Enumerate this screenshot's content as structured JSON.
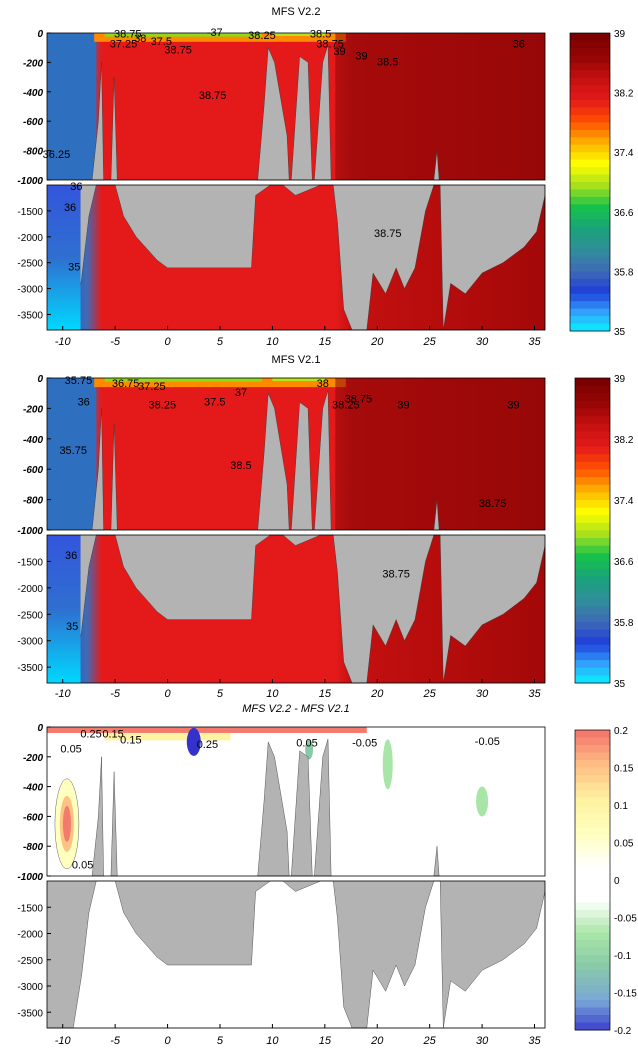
{
  "chart_data": [
    {
      "type": "heatmap",
      "title": "MFS V2.2",
      "x_ticks": [
        "-10",
        "-5",
        "0",
        "5",
        "10",
        "15",
        "20",
        "25",
        "30",
        "35"
      ],
      "y_ticks_upper": [
        "0",
        "-200",
        "-400",
        "-600",
        "-800",
        "-1000"
      ],
      "y_ticks_lower": [
        "-1500",
        "-2000",
        "-2500",
        "-3000",
        "-3500"
      ],
      "xlim": [
        -11.5,
        36
      ],
      "ylim_upper": [
        -1000,
        0
      ],
      "ylim_lower": [
        -3800,
        -1000
      ],
      "colorbar": {
        "min": 35,
        "max": 39,
        "ticks": [
          "39",
          "38.2",
          "37.4",
          "36.6",
          "35.8",
          "35"
        ]
      },
      "contour_labels": [
        "36.25",
        "36",
        "38.75",
        "37.25",
        "37.5",
        "38.75",
        "-37",
        "38",
        "38.25",
        "38.5",
        "38.75",
        "39",
        "39",
        "38.5",
        "36",
        "38.75",
        "36",
        "35",
        "38.75"
      ],
      "colors": {
        "land": "#b3b3b3",
        "low": "#00e5ff",
        "high": "#7a0000"
      }
    },
    {
      "type": "heatmap",
      "title": "MFS V2.1",
      "x_ticks": [
        "-10",
        "-5",
        "0",
        "5",
        "10",
        "15",
        "20",
        "25",
        "30",
        "35"
      ],
      "y_ticks_upper": [
        "0",
        "-200",
        "-400",
        "-600",
        "-800",
        "-1000"
      ],
      "y_ticks_lower": [
        "-1500",
        "-2000",
        "-2500",
        "-3000",
        "-3500"
      ],
      "xlim": [
        -11.5,
        36
      ],
      "ylim_upper": [
        -1000,
        0
      ],
      "ylim_lower": [
        -3800,
        -1000
      ],
      "colorbar": {
        "min": 35,
        "max": 39,
        "ticks": [
          "39",
          "38.2",
          "37.4",
          "36.6",
          "35.8",
          "35"
        ]
      },
      "contour_labels": [
        "35.75",
        "36",
        "36.75",
        "37.25",
        "38.25",
        "37.5",
        "37",
        "38",
        "38.75",
        "38.25",
        "39",
        "39",
        "35.75",
        "38.5",
        "38.75",
        "36",
        "38.75",
        "35"
      ],
      "colors": {
        "land": "#b3b3b3",
        "low": "#00e5ff",
        "high": "#7a0000"
      }
    },
    {
      "type": "heatmap",
      "title": "MFS V2.2 - MFS V2.1",
      "x_ticks": [
        "-10",
        "-5",
        "0",
        "5",
        "10",
        "15",
        "20",
        "25",
        "30",
        "35"
      ],
      "y_ticks_upper": [
        "0",
        "-200",
        "-400",
        "-600",
        "-800",
        "-1000"
      ],
      "y_ticks_lower": [
        "-1500",
        "-2000",
        "-2500",
        "-3000",
        "-3500"
      ],
      "xlim": [
        -11.5,
        36
      ],
      "ylim_upper": [
        -1000,
        0
      ],
      "ylim_lower": [
        -3800,
        -1000
      ],
      "colorbar": {
        "min": -0.2,
        "max": 0.2,
        "ticks": [
          "0.2",
          "0.15",
          "0.1",
          "0.05",
          "0",
          "-0.05",
          "-0.1",
          "-0.15",
          "-0.2"
        ]
      },
      "contour_labels": [
        "0.25",
        "0.15",
        "0.05",
        "0.15",
        "0.25",
        "0.05",
        "-0.05",
        "-0.05",
        "0.05"
      ],
      "colors": {
        "land": "#b3b3b3"
      }
    }
  ]
}
